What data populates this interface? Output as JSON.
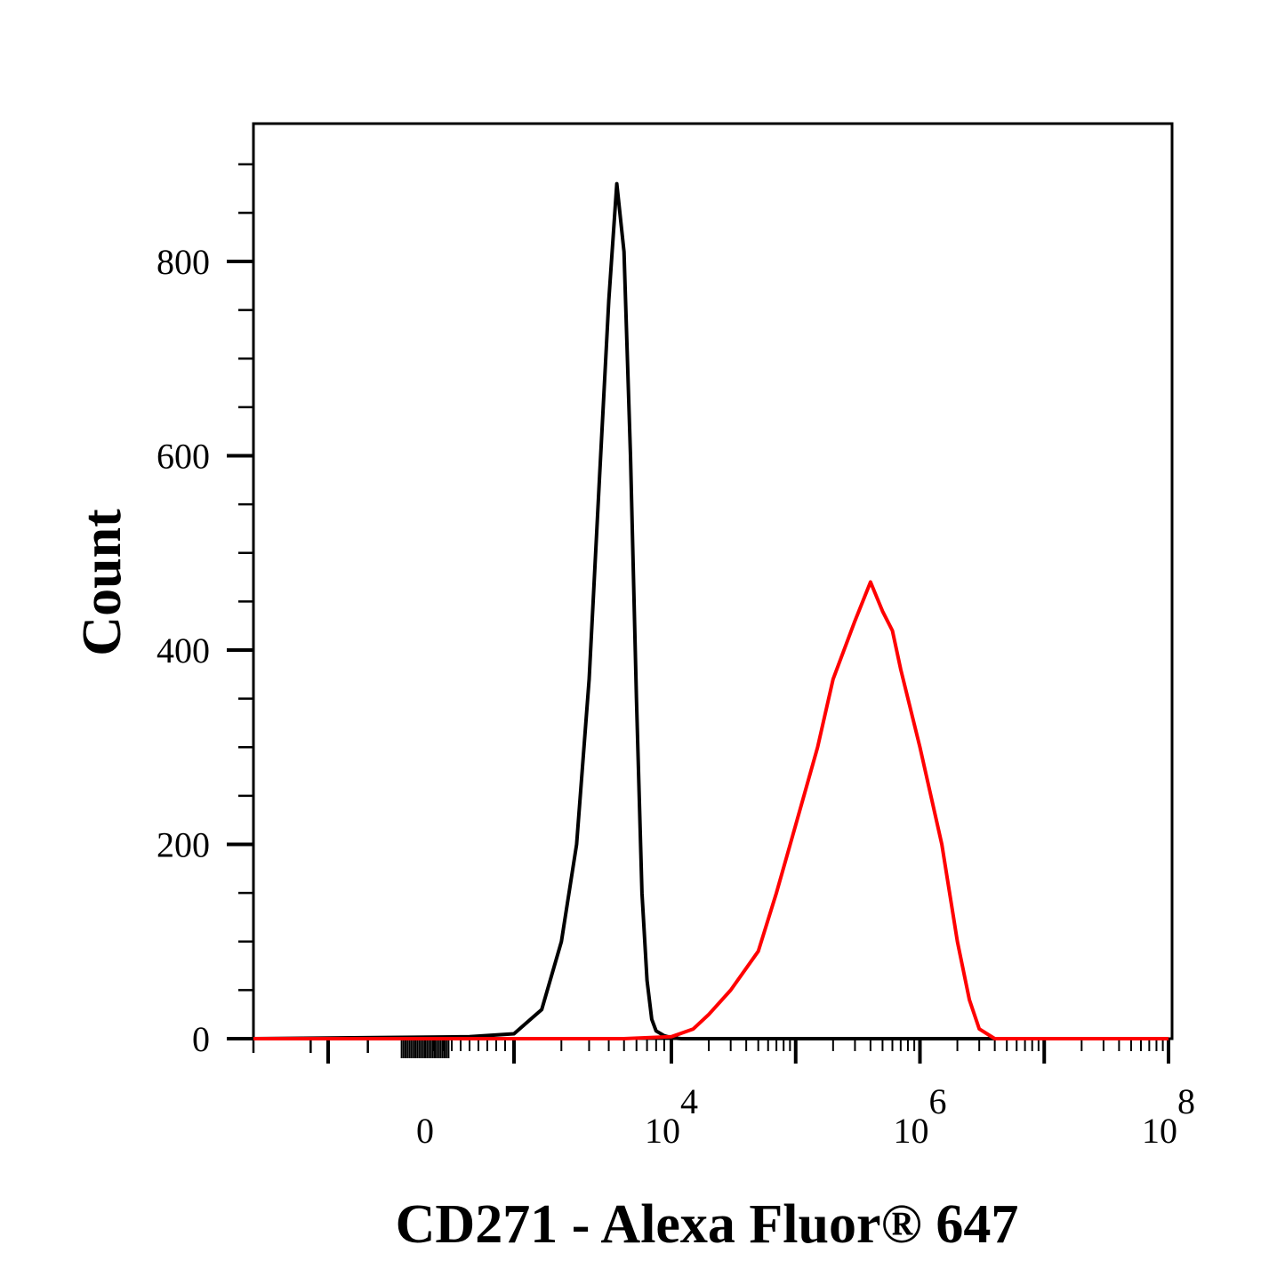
{
  "chart_data": {
    "type": "line",
    "title": "",
    "xlabel": "CD271 - Alexa Fluor® 647",
    "ylabel": "Count",
    "x_scale": "biexponential",
    "x_ticks": [
      {
        "label": "0",
        "value": 0
      },
      {
        "base": "10",
        "exp": "4",
        "value": 10000
      },
      {
        "base": "10",
        "exp": "6",
        "value": 1000000
      },
      {
        "base": "10",
        "exp": "8",
        "value": 100000000
      }
    ],
    "y_ticks": [
      "0",
      "200",
      "400",
      "600",
      "800"
    ],
    "ylim": [
      0,
      900
    ],
    "grid": false,
    "legend": "none",
    "series": [
      {
        "color": "#000000",
        "x": [
          -3000,
          500,
          1000,
          1500,
          2000,
          2500,
          3000,
          3500,
          4000,
          4500,
          5000,
          5500,
          6000,
          6500,
          7000,
          7500,
          8000,
          9000,
          10000,
          12000,
          15000,
          20000,
          30000,
          100000000.0
        ],
        "y": [
          0,
          2,
          5,
          30,
          100,
          200,
          370,
          580,
          760,
          880,
          810,
          600,
          350,
          150,
          60,
          20,
          8,
          3,
          1,
          0,
          0,
          0,
          0,
          0
        ]
      },
      {
        "color": "#ff0000",
        "x": [
          -3000,
          5000,
          10000,
          15000,
          20000,
          30000,
          50000,
          70000,
          100000,
          150000,
          200000,
          300000,
          400000,
          500000,
          600000,
          700000,
          1000000,
          1500000,
          2000000,
          2500000,
          3000000,
          4000000,
          5000000,
          7000000,
          100000000.0
        ],
        "y": [
          0,
          0,
          2,
          10,
          25,
          50,
          90,
          150,
          220,
          300,
          370,
          430,
          470,
          440,
          420,
          380,
          300,
          200,
          100,
          40,
          10,
          0,
          0,
          0,
          0
        ]
      }
    ]
  }
}
